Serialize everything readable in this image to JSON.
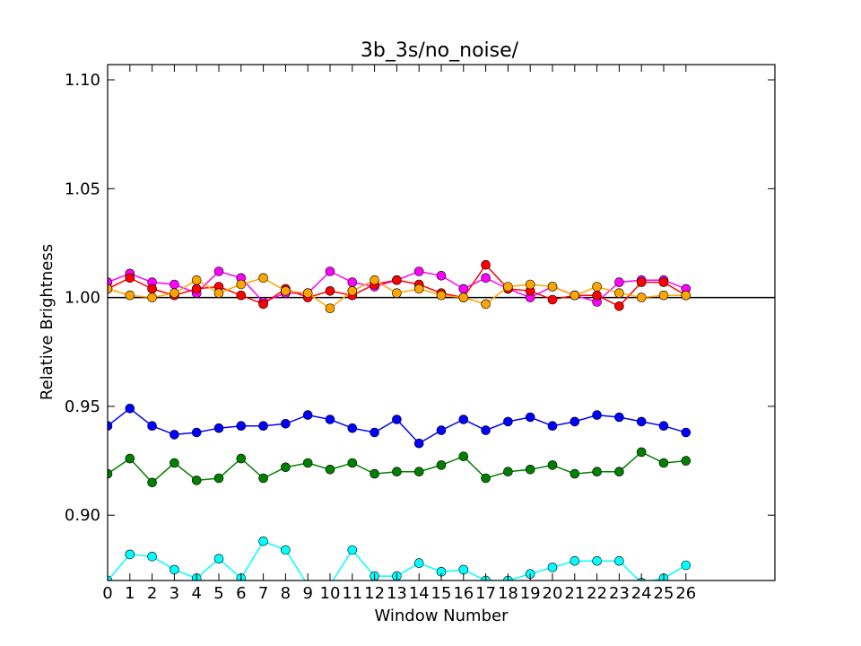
{
  "chart_data": {
    "type": "line",
    "title": "3b_3s/no_noise/",
    "xlabel": "Window Number",
    "ylabel": "Relative Brightness",
    "xlim": [
      0,
      30
    ],
    "ylim": [
      0.87,
      1.107
    ],
    "x_ticks": [
      0,
      1,
      2,
      3,
      4,
      5,
      6,
      7,
      8,
      9,
      10,
      11,
      12,
      13,
      14,
      15,
      16,
      17,
      18,
      19,
      20,
      21,
      22,
      23,
      24,
      25,
      26
    ],
    "y_ticks": [
      0.9,
      0.95,
      1.0,
      1.05,
      1.1
    ],
    "y_tick_labels": [
      "0.90",
      "0.95",
      "1.00",
      "1.05",
      "1.10"
    ],
    "reference_line": {
      "y": 1.0,
      "color": "#000000"
    },
    "grid": false,
    "series": [
      {
        "color": "#ff00ff",
        "values": [
          1.007,
          1.011,
          1.007,
          1.006,
          1.002,
          1.012,
          1.009,
          0.998,
          1.002,
          1.002,
          1.012,
          1.007,
          1.005,
          1.008,
          1.012,
          1.01,
          1.004,
          1.009,
          1.004,
          1.0,
          1.005,
          1.001,
          0.998,
          1.007,
          1.008,
          1.008,
          1.004
        ]
      },
      {
        "color": "#ff0000",
        "values": [
          1.004,
          1.009,
          1.004,
          1.001,
          1.004,
          1.005,
          1.001,
          0.997,
          1.004,
          1.0,
          1.003,
          1.001,
          1.006,
          1.008,
          1.006,
          1.002,
          1.0,
          1.015,
          1.004,
          1.003,
          0.999,
          1.001,
          1.001,
          0.996,
          1.007,
          1.007,
          1.001
        ]
      },
      {
        "color": "#ffa500",
        "values": [
          1.004,
          1.001,
          1.0,
          1.002,
          1.008,
          1.002,
          1.006,
          1.009,
          1.003,
          1.002,
          0.995,
          1.003,
          1.008,
          1.002,
          1.004,
          1.001,
          1.0,
          0.997,
          1.005,
          1.006,
          1.005,
          1.001,
          1.005,
          1.002,
          1.0,
          1.001,
          1.001
        ]
      },
      {
        "color": "#0000ff",
        "values": [
          0.941,
          0.949,
          0.941,
          0.937,
          0.938,
          0.94,
          0.941,
          0.941,
          0.942,
          0.946,
          0.944,
          0.94,
          0.938,
          0.944,
          0.933,
          0.939,
          0.944,
          0.939,
          0.943,
          0.945,
          0.941,
          0.943,
          0.946,
          0.945,
          0.943,
          0.941,
          0.938
        ]
      },
      {
        "color": "#008000",
        "values": [
          0.919,
          0.926,
          0.915,
          0.924,
          0.916,
          0.917,
          0.926,
          0.917,
          0.922,
          0.924,
          0.921,
          0.924,
          0.919,
          0.92,
          0.92,
          0.923,
          0.927,
          0.917,
          0.92,
          0.921,
          0.923,
          0.919,
          0.92,
          0.92,
          0.929,
          0.924,
          0.925
        ]
      },
      {
        "color": "#00ffff",
        "values": [
          0.87,
          0.882,
          0.881,
          0.875,
          0.871,
          0.88,
          0.871,
          0.888,
          0.884,
          0.868,
          0.868,
          0.884,
          0.872,
          0.872,
          0.878,
          0.874,
          0.875,
          0.87,
          0.87,
          0.873,
          0.876,
          0.879,
          0.879,
          0.879,
          0.869,
          0.871,
          0.877
        ]
      }
    ]
  }
}
